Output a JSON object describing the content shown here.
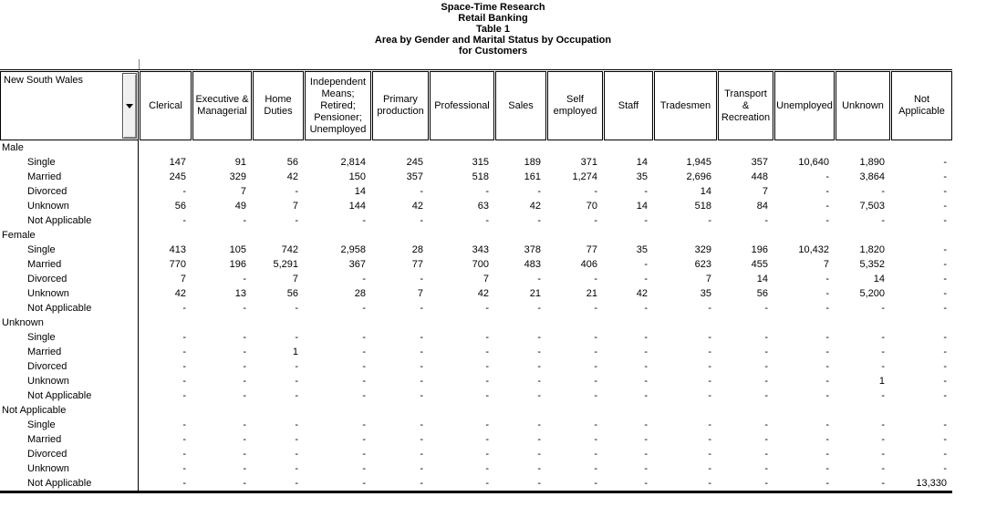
{
  "titles": [
    "Space-Time Research",
    "Retail Banking",
    "Table 1",
    "Area by Gender and Marital Status by Occupation",
    "for Customers"
  ],
  "icons": {
    "chevron_down": "▼"
  },
  "colors": {
    "text": "#000000",
    "border": "#000000",
    "button_face": "#f0f0f0"
  },
  "table": {
    "row_axis_label": "New South Wales",
    "columns": [
      "Clerical",
      "Executive & Managerial",
      "Home Duties",
      "Independent Means; Retired; Pensioner; Unemployed",
      "Primary production",
      "Professional",
      "Sales",
      "Self employed",
      "Staff",
      "Tradesmen",
      "Transport & Recreation",
      "Unemployed",
      "Unknown",
      "Not Applicable"
    ],
    "groups": [
      {
        "label": "Male",
        "rows": [
          {
            "label": "Single",
            "values": [
              "147",
              "91",
              "56",
              "2,814",
              "245",
              "315",
              "189",
              "371",
              "14",
              "1,945",
              "357",
              "10,640",
              "1,890",
              "-"
            ]
          },
          {
            "label": "Married",
            "values": [
              "245",
              "329",
              "42",
              "150",
              "357",
              "518",
              "161",
              "1,274",
              "35",
              "2,696",
              "448",
              "-",
              "3,864",
              "-"
            ]
          },
          {
            "label": "Divorced",
            "values": [
              "-",
              "7",
              "-",
              "14",
              "-",
              "-",
              "-",
              "-",
              "-",
              "14",
              "7",
              "-",
              "-",
              "-"
            ]
          },
          {
            "label": "Unknown",
            "values": [
              "56",
              "49",
              "7",
              "144",
              "42",
              "63",
              "42",
              "70",
              "14",
              "518",
              "84",
              "-",
              "7,503",
              "-"
            ]
          },
          {
            "label": "Not Applicable",
            "values": [
              "-",
              "-",
              "-",
              "-",
              "-",
              "-",
              "-",
              "-",
              "-",
              "-",
              "-",
              "-",
              "-",
              "-"
            ]
          }
        ]
      },
      {
        "label": "Female",
        "rows": [
          {
            "label": "Single",
            "values": [
              "413",
              "105",
              "742",
              "2,958",
              "28",
              "343",
              "378",
              "77",
              "35",
              "329",
              "196",
              "10,432",
              "1,820",
              "-"
            ]
          },
          {
            "label": "Married",
            "values": [
              "770",
              "196",
              "5,291",
              "367",
              "77",
              "700",
              "483",
              "406",
              "-",
              "623",
              "455",
              "7",
              "5,352",
              "-"
            ]
          },
          {
            "label": "Divorced",
            "values": [
              "7",
              "-",
              "7",
              "-",
              "-",
              "7",
              "-",
              "-",
              "-",
              "7",
              "14",
              "-",
              "14",
              "-"
            ]
          },
          {
            "label": "Unknown",
            "values": [
              "42",
              "13",
              "56",
              "28",
              "7",
              "42",
              "21",
              "21",
              "42",
              "35",
              "56",
              "-",
              "5,200",
              "-"
            ]
          },
          {
            "label": "Not Applicable",
            "values": [
              "-",
              "-",
              "-",
              "-",
              "-",
              "-",
              "-",
              "-",
              "-",
              "-",
              "-",
              "-",
              "-",
              "-"
            ]
          }
        ]
      },
      {
        "label": "Unknown",
        "rows": [
          {
            "label": "Single",
            "values": [
              "-",
              "-",
              "-",
              "-",
              "-",
              "-",
              "-",
              "-",
              "-",
              "-",
              "-",
              "-",
              "-",
              "-"
            ]
          },
          {
            "label": "Married",
            "values": [
              "-",
              "-",
              "1",
              "-",
              "-",
              "-",
              "-",
              "-",
              "-",
              "-",
              "-",
              "-",
              "-",
              "-"
            ]
          },
          {
            "label": "Divorced",
            "values": [
              "-",
              "-",
              "-",
              "-",
              "-",
              "-",
              "-",
              "-",
              "-",
              "-",
              "-",
              "-",
              "-",
              "-"
            ]
          },
          {
            "label": "Unknown",
            "values": [
              "-",
              "-",
              "-",
              "-",
              "-",
              "-",
              "-",
              "-",
              "-",
              "-",
              "-",
              "-",
              "1",
              "-"
            ]
          },
          {
            "label": "Not Applicable",
            "values": [
              "-",
              "-",
              "-",
              "-",
              "-",
              "-",
              "-",
              "-",
              "-",
              "-",
              "-",
              "-",
              "-",
              "-"
            ]
          }
        ]
      },
      {
        "label": "Not Applicable",
        "rows": [
          {
            "label": "Single",
            "values": [
              "-",
              "-",
              "-",
              "-",
              "-",
              "-",
              "-",
              "-",
              "-",
              "-",
              "-",
              "-",
              "-",
              "-"
            ]
          },
          {
            "label": "Married",
            "values": [
              "-",
              "-",
              "-",
              "-",
              "-",
              "-",
              "-",
              "-",
              "-",
              "-",
              "-",
              "-",
              "-",
              "-"
            ]
          },
          {
            "label": "Divorced",
            "values": [
              "-",
              "-",
              "-",
              "-",
              "-",
              "-",
              "-",
              "-",
              "-",
              "-",
              "-",
              "-",
              "-",
              "-"
            ]
          },
          {
            "label": "Unknown",
            "values": [
              "-",
              "-",
              "-",
              "-",
              "-",
              "-",
              "-",
              "-",
              "-",
              "-",
              "-",
              "-",
              "-",
              "-"
            ]
          },
          {
            "label": "Not Applicable",
            "values": [
              "-",
              "-",
              "-",
              "-",
              "-",
              "-",
              "-",
              "-",
              "-",
              "-",
              "-",
              "-",
              "-",
              "13,330"
            ]
          }
        ]
      }
    ]
  }
}
